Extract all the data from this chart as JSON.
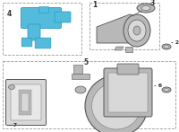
{
  "bg_color": "#ffffff",
  "blue": "#55bbdd",
  "blue_dark": "#2299bb",
  "gray_light": "#d8d8d8",
  "gray_mid": "#b8b8b8",
  "gray_dark": "#888888",
  "line_color": "#555555",
  "label_color": "#333333",
  "dash_color": "#999999"
}
